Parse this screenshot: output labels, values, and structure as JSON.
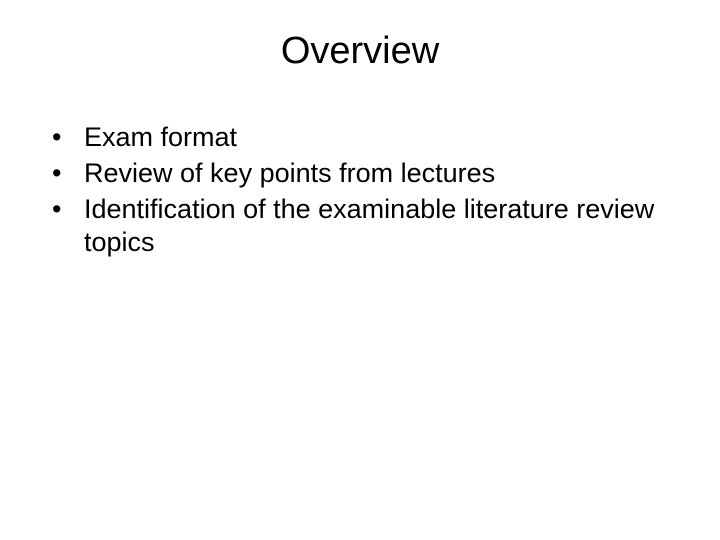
{
  "slide": {
    "title": "Overview",
    "bullets": [
      "Exam format",
      "Review of key points from lectures",
      "Identification of the examinable literature review topics"
    ],
    "styling": {
      "background_color": "#ffffff",
      "text_color": "#000000",
      "title_fontsize": 38,
      "title_align": "center",
      "bullet_fontsize": 27,
      "bullet_marker": "•",
      "font_family": "Arial"
    }
  }
}
